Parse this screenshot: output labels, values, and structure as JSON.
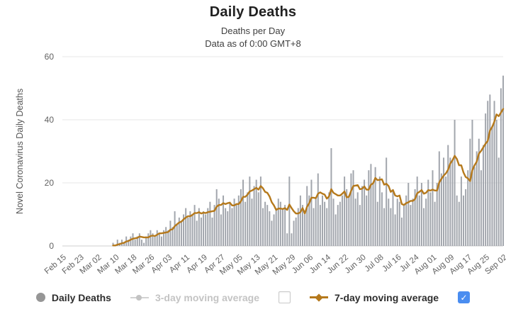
{
  "header": {
    "title": "Daily Deaths",
    "subtitle": "Deaths per Day",
    "as_of": "Data as of 0:00 GMT+8"
  },
  "chart_data": {
    "type": "bar",
    "title": "Daily Deaths",
    "xlabel": "",
    "ylabel": "Novel Coronavirus Daily Deaths",
    "ylim": [
      0,
      60
    ],
    "y_ticks": [
      0,
      20,
      40,
      60
    ],
    "grid": "horizontal",
    "legend_position": "bottom",
    "x_range": [
      "Feb 15",
      "Sep 02"
    ],
    "x_tick_interval_days": 8,
    "x_tick_labels": [
      "Feb 15",
      "Feb 23",
      "Mar 02",
      "Mar 10",
      "Mar 18",
      "Mar 26",
      "Apr 03",
      "Apr 11",
      "Apr 19",
      "Apr 27",
      "May 05",
      "May 13",
      "May 21",
      "May 29",
      "Jun 06",
      "Jun 14",
      "Jun 22",
      "Jun 30",
      "Jul 08",
      "Jul 16",
      "Jul 24",
      "Aug 01",
      "Aug 09",
      "Aug 17",
      "Aug 25",
      "Sep 02"
    ],
    "series": [
      {
        "name": "Daily Deaths",
        "type": "bar",
        "color": "#a2a6ad",
        "daily_values": [
          0,
          0,
          0,
          0,
          0,
          0,
          0,
          0,
          0,
          0,
          0,
          0,
          0,
          0,
          0,
          0,
          0,
          0,
          0,
          0,
          0,
          0,
          0,
          1,
          0,
          2,
          1,
          2,
          1,
          3,
          2,
          3,
          4,
          2,
          3,
          4,
          2,
          1,
          3,
          4,
          5,
          4,
          3,
          5,
          4,
          3,
          5,
          6,
          5,
          8,
          6,
          11,
          7,
          9,
          8,
          10,
          12,
          9,
          11,
          10,
          13,
          8,
          12,
          9,
          11,
          10,
          12,
          14,
          9,
          13,
          18,
          15,
          10,
          16,
          12,
          11,
          14,
          12,
          15,
          13,
          16,
          18,
          21,
          14,
          17,
          22,
          15,
          19,
          21,
          17,
          22,
          12,
          14,
          13,
          11,
          8,
          10,
          12,
          15,
          14,
          12,
          13,
          4,
          22,
          4,
          8,
          9,
          12,
          16,
          13,
          10,
          19,
          16,
          21,
          12,
          15,
          23,
          13,
          16,
          14,
          12,
          17,
          31,
          15,
          10,
          13,
          14,
          16,
          22,
          18,
          16,
          23,
          24,
          15,
          17,
          13,
          19,
          21,
          16,
          24,
          26,
          20,
          25,
          14,
          22,
          17,
          12,
          28,
          15,
          12,
          18,
          10,
          15,
          14,
          9,
          13,
          16,
          20,
          13,
          15,
          18,
          22,
          16,
          20,
          12,
          15,
          21,
          17,
          24,
          14,
          20,
          30,
          23,
          28,
          22,
          32,
          28,
          27,
          40,
          16,
          14,
          22,
          16,
          18,
          24,
          34,
          40,
          25,
          30,
          34,
          24,
          32,
          42,
          46,
          48,
          38,
          46,
          40,
          28,
          50,
          54
        ]
      },
      {
        "name": "3-day moving average",
        "type": "line",
        "color": "#c9c9c9",
        "enabled": false,
        "derived": "trailing 3-day mean of Daily Deaths (hidden / not plotted)"
      },
      {
        "name": "7-day moving average",
        "type": "line",
        "color": "#b5791c",
        "enabled": true,
        "derived": "trailing 7-day mean of Daily Deaths (computed at render time)"
      }
    ]
  },
  "legend": {
    "items": [
      {
        "label": "Daily Deaths",
        "marker": "circle",
        "color": "#969696",
        "enabled": true
      },
      {
        "label": "3-day moving average",
        "marker": "line-dot",
        "color": "#c9c9c9",
        "enabled": false
      },
      {
        "label": "7-day moving average",
        "marker": "line-diamond",
        "color": "#b5791c",
        "enabled": true
      }
    ],
    "checkboxes": [
      {
        "position": "before-7day-item",
        "state": "unchecked"
      },
      {
        "position": "row-end",
        "state": "checked",
        "color": "#4a8df0",
        "check_icon": "✓"
      }
    ]
  },
  "colors": {
    "bar": "#a2a6ad",
    "ma7_line": "#b5791c",
    "grid": "#e7e7e7",
    "axis_line": "#cfcfcf",
    "tick_text": "#616161",
    "axis_label_text": "#555555"
  }
}
